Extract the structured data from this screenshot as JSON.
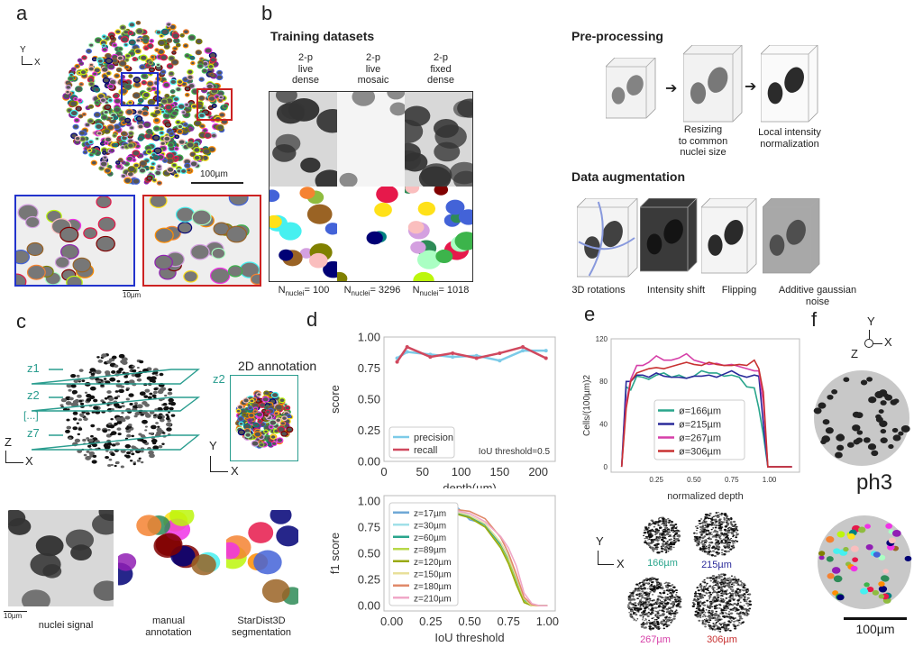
{
  "panels": {
    "a": {
      "label": "a",
      "axis_y": "Y",
      "axis_x": "X",
      "scale_main": "100µm",
      "scale_inset": "10µm",
      "colors": {
        "blue_box": "#2233cc",
        "red_box": "#cc2222"
      }
    },
    "b": {
      "label": "b",
      "training_title": "Training datasets",
      "datasets": [
        {
          "name": "2-p\nlive\ndense",
          "n_prefix": "N",
          "n_sub": "nuclei",
          "n_value": "= 100"
        },
        {
          "name": "2-p\nlive\nmosaic",
          "n_prefix": "N",
          "n_sub": "nuclei",
          "n_value": "= 3296"
        },
        {
          "name": "2-p\nfixed\ndense",
          "n_prefix": "N",
          "n_sub": "nuclei",
          "n_value": "= 1018"
        }
      ],
      "preprocessing_title": "Pre-processing",
      "preprocessing_steps": [
        "Resizing\nto common\nnuclei size",
        "Local intensity\nnormalization"
      ],
      "augmentation_title": "Data augmentation",
      "augmentations": [
        "3D rotations",
        "Intensity shift",
        "Flipping",
        "Additive gaussian\nnoise"
      ]
    },
    "c": {
      "label": "c",
      "planes": [
        "z1",
        "z2",
        "[...]",
        "z7"
      ],
      "axis_z": "Z",
      "axis_x": "X",
      "axis_y": "Y",
      "annotation_title": "2D annotation",
      "annotation_plane": "z2",
      "scale": "10µm",
      "captions": [
        "nuclei signal",
        "manual\nannotation",
        "StarDist3D\nsegmentation"
      ],
      "accent": "#2a9d8f"
    },
    "d": {
      "label": "d"
    },
    "e": {
      "label": "e",
      "axis_y": "Y",
      "axis_x": "X",
      "organoids": [
        {
          "label": "166µm",
          "color": "#2aa58c"
        },
        {
          "label": "215µm",
          "color": "#2a2a9a"
        },
        {
          "label": "267µm",
          "color": "#d63fa8"
        },
        {
          "label": "306µm",
          "color": "#c83232"
        }
      ]
    },
    "f": {
      "label": "f",
      "axis_y": "Y",
      "axis_z": "Z",
      "axis_x": "X",
      "stain": "ph3",
      "scale": "100µm"
    }
  },
  "chart_data": [
    {
      "id": "d-top",
      "type": "line",
      "title": "",
      "xlabel": "depth(µm)",
      "ylabel": "score",
      "xlim": [
        0,
        222
      ],
      "ylim": [
        0,
        1
      ],
      "xticks": [
        0,
        50,
        100,
        150,
        200
      ],
      "yticks": [
        "0.00",
        "0.25",
        "0.50",
        "0.75",
        "1.00"
      ],
      "x": [
        17,
        30,
        60,
        89,
        120,
        150,
        180,
        210
      ],
      "series": [
        {
          "name": "precision",
          "color": "#7ccbe8",
          "values": [
            0.83,
            0.88,
            0.86,
            0.84,
            0.85,
            0.81,
            0.89,
            0.89
          ]
        },
        {
          "name": "recall",
          "color": "#d0485e",
          "values": [
            0.8,
            0.92,
            0.84,
            0.87,
            0.83,
            0.87,
            0.92,
            0.83
          ]
        }
      ],
      "annotation": "IoU threshold=0.5",
      "legend": "bottom-left"
    },
    {
      "id": "d-bottom",
      "type": "line",
      "xlabel": "IoU threshold",
      "ylabel": "f1 score",
      "xlim": [
        -0.05,
        1.05
      ],
      "ylim": [
        -0.05,
        1.05
      ],
      "xticks": [
        "0.00",
        "0.25",
        "0.50",
        "0.75",
        "1.00"
      ],
      "yticks": [
        "0.00",
        "0.25",
        "0.50",
        "0.75",
        "1.00"
      ],
      "x": [
        0,
        0.1,
        0.2,
        0.3,
        0.4,
        0.5,
        0.6,
        0.7,
        0.75,
        0.8,
        0.85,
        0.9,
        0.95,
        1.0
      ],
      "series": [
        {
          "name": "z=17µm",
          "color": "#6fa8d6",
          "values": [
            0.97,
            0.97,
            0.97,
            0.97,
            0.97,
            0.82,
            0.78,
            0.6,
            0.45,
            0.25,
            0.05,
            0,
            0,
            0
          ]
        },
        {
          "name": "z=30µm",
          "color": "#a0e0e8",
          "values": [
            0.97,
            0.97,
            0.96,
            0.96,
            0.93,
            0.86,
            0.78,
            0.6,
            0.47,
            0.28,
            0.08,
            0,
            0,
            0
          ]
        },
        {
          "name": "z=60µm",
          "color": "#2aa58c",
          "values": [
            0.92,
            0.92,
            0.92,
            0.91,
            0.89,
            0.85,
            0.77,
            0.58,
            0.43,
            0.24,
            0.05,
            0,
            0,
            0
          ]
        },
        {
          "name": "z=89µm",
          "color": "#b8d84a",
          "values": [
            0.91,
            0.91,
            0.91,
            0.9,
            0.88,
            0.84,
            0.75,
            0.56,
            0.42,
            0.22,
            0.04,
            0,
            0,
            0
          ]
        },
        {
          "name": "z=120µm",
          "color": "#9aaa10",
          "values": [
            0.92,
            0.92,
            0.92,
            0.91,
            0.88,
            0.84,
            0.75,
            0.55,
            0.4,
            0.2,
            0.03,
            0,
            0,
            0
          ]
        },
        {
          "name": "z=150µm",
          "color": "#e8e09a",
          "values": [
            0.93,
            0.93,
            0.93,
            0.92,
            0.9,
            0.86,
            0.78,
            0.6,
            0.46,
            0.27,
            0.07,
            0,
            0,
            0
          ]
        },
        {
          "name": "z=180µm",
          "color": "#e08a6a",
          "values": [
            0.93,
            0.93,
            0.93,
            0.93,
            0.92,
            0.9,
            0.83,
            0.65,
            0.5,
            0.3,
            0.08,
            0.01,
            0,
            0
          ]
        },
        {
          "name": "z=210µm",
          "color": "#f0a8c8",
          "values": [
            0.94,
            0.94,
            0.94,
            0.93,
            0.91,
            0.88,
            0.8,
            0.66,
            0.55,
            0.38,
            0.12,
            0.02,
            0,
            0
          ]
        }
      ],
      "legend": "left"
    },
    {
      "id": "e",
      "type": "line",
      "xlabel": "normalized depth",
      "ylabel": "Cells/(100µm)2",
      "xlim": [
        -0.05,
        1.2
      ],
      "ylim": [
        -5,
        120
      ],
      "xticks": [
        "0.25",
        "0.50",
        "0.75",
        "1.00"
      ],
      "yticks": [
        "0",
        "40",
        "80",
        "120"
      ],
      "x": [
        0.02,
        0.05,
        0.08,
        0.12,
        0.16,
        0.2,
        0.25,
        0.3,
        0.35,
        0.4,
        0.45,
        0.5,
        0.55,
        0.6,
        0.65,
        0.7,
        0.75,
        0.8,
        0.85,
        0.9,
        0.93,
        0.96,
        0.99,
        1.05,
        1.15
      ],
      "series": [
        {
          "name": "ø=166µm",
          "color": "#2aa58c",
          "values": [
            0,
            75,
            72,
            85,
            84,
            82,
            86,
            88,
            84,
            86,
            83,
            85,
            90,
            88,
            88,
            85,
            86,
            84,
            75,
            74,
            55,
            30,
            0,
            0,
            0
          ]
        },
        {
          "name": "ø=215µm",
          "color": "#2a2a9a",
          "values": [
            0,
            80,
            80,
            86,
            86,
            84,
            88,
            85,
            84,
            84,
            83,
            85,
            85,
            86,
            84,
            87,
            90,
            86,
            84,
            86,
            85,
            40,
            0,
            0,
            0
          ]
        },
        {
          "name": "ø=267µm",
          "color": "#d63fa8",
          "values": [
            0,
            60,
            82,
            95,
            95,
            98,
            104,
            100,
            100,
            102,
            106,
            100,
            98,
            96,
            97,
            95,
            96,
            94,
            92,
            90,
            90,
            60,
            0,
            0,
            0
          ]
        },
        {
          "name": "ø=306µm",
          "color": "#c83232",
          "values": [
            0,
            55,
            80,
            88,
            90,
            92,
            93,
            92,
            94,
            96,
            98,
            96,
            95,
            98,
            96,
            95,
            95,
            96,
            95,
            100,
            92,
            70,
            0,
            0,
            0
          ]
        }
      ],
      "legend": "center"
    }
  ]
}
